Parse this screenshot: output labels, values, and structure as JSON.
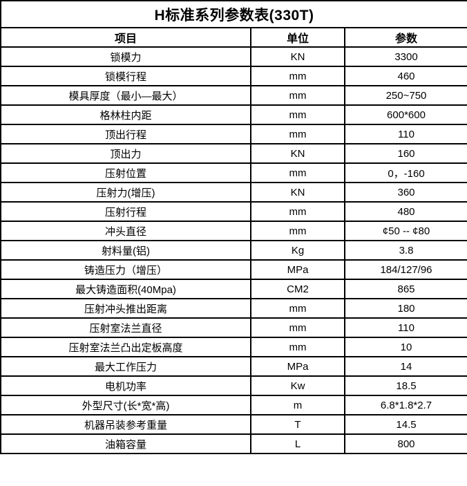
{
  "title": "H标准系列参数表(330T)",
  "table": {
    "headers": [
      "项目",
      "单位",
      "参数"
    ],
    "rows": [
      [
        "锁模力",
        "KN",
        "3300"
      ],
      [
        "锁模行程",
        "mm",
        "460"
      ],
      [
        "模具厚度（最小—最大）",
        "mm",
        "250~750"
      ],
      [
        "格林柱内距",
        "mm",
        "600*600"
      ],
      [
        "顶出行程",
        "mm",
        "110"
      ],
      [
        "顶出力",
        "KN",
        "160"
      ],
      [
        "压射位置",
        "mm",
        "0，-160"
      ],
      [
        "压射力(增压)",
        "KN",
        "360"
      ],
      [
        "压射行程",
        "mm",
        "480"
      ],
      [
        "冲头直径",
        "mm",
        "¢50 -- ¢80"
      ],
      [
        "射料量(铝)",
        "Kg",
        "3.8"
      ],
      [
        "铸造压力（增压）",
        "MPa",
        "184/127/96"
      ],
      [
        "最大铸造面积(40Mpa)",
        "CM2",
        "865"
      ],
      [
        "压射冲头推出距离",
        "mm",
        "180"
      ],
      [
        "压射室法兰直径",
        "mm",
        "110"
      ],
      [
        "压射室法兰凸出定板高度",
        "mm",
        "10"
      ],
      [
        "最大工作压力",
        "MPa",
        "14"
      ],
      [
        "电机功率",
        "Kw",
        "18.5"
      ],
      [
        "外型尺寸(长*宽*高)",
        "m",
        "6.8*1.8*2.7"
      ],
      [
        "机器吊装参考重量",
        "T",
        "14.5"
      ],
      [
        "油箱容量",
        "L",
        "800"
      ]
    ]
  },
  "colors": {
    "border": "#000000",
    "background": "#ffffff",
    "text": "#000000"
  }
}
